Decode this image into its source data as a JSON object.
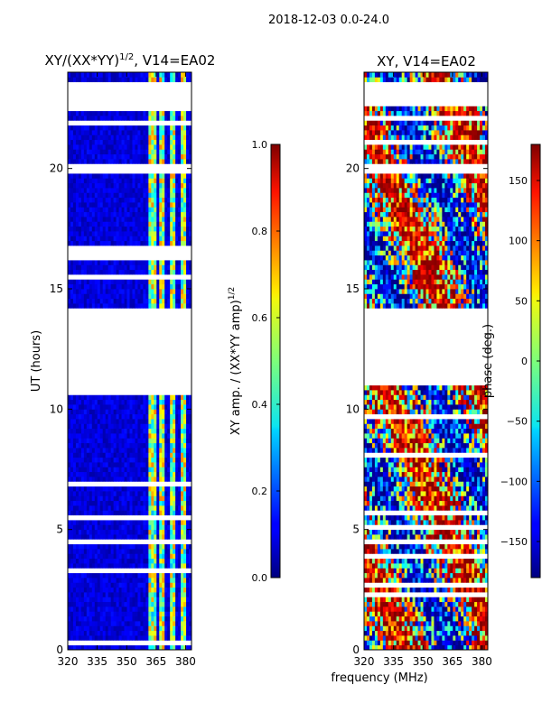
{
  "figure_title": "2018-12-03 0.0-24.0",
  "chart_data": [
    {
      "type": "heatmap",
      "title": "XY/(XX*YY)",
      "title_exp": "1/2",
      "title_suffix": ", V14=EA02",
      "xlabel": "",
      "ylabel": "UT (hours)",
      "xlim": [
        320,
        383
      ],
      "ylim": [
        0,
        24
      ],
      "xticks": [
        320,
        335,
        350,
        365,
        380
      ],
      "yticks": [
        0,
        5,
        10,
        15,
        20
      ],
      "colormap": "jet",
      "colorbar": {
        "label_main": "XY amp. / (XX*YY amp)",
        "label_exp": "1/2",
        "range": [
          0.0,
          1.0
        ],
        "ticks": [
          "0.0",
          "0.2",
          "0.4",
          "0.6",
          "0.8",
          "1.0"
        ],
        "tick_values": [
          0.0,
          0.2,
          0.4,
          0.6,
          0.8,
          1.0
        ]
      },
      "flagged_hour_ranges": [
        [
          10.95,
          14.2
        ],
        [
          22.7,
          23.6
        ],
        [
          16.3,
          16.75
        ],
        [
          19.9,
          20.25
        ],
        [
          4.4,
          4.65
        ]
      ],
      "bright_channel_bands_mhz": [
        [
          361,
          365
        ],
        [
          367,
          369
        ],
        [
          372,
          374.5
        ],
        [
          377,
          380
        ]
      ]
    },
    {
      "type": "heatmap",
      "title": "XY, V14=EA02",
      "xlabel": "frequency (MHz)",
      "ylabel": "",
      "xlim": [
        320,
        383
      ],
      "ylim": [
        0,
        24
      ],
      "xticks": [
        320,
        335,
        350,
        365,
        380
      ],
      "yticks": [
        0,
        5,
        10,
        15,
        20
      ],
      "colormap": "jet",
      "colorbar": {
        "label_main": "phase (deg.)",
        "range": [
          -180,
          180
        ],
        "ticks": [
          "−150",
          "−100",
          "−50",
          "0",
          "50",
          "100",
          "150"
        ],
        "tick_values": [
          -150,
          -100,
          -50,
          0,
          50,
          100,
          150
        ]
      },
      "flagged_hour_ranges": [
        [
          10.95,
          14.2
        ],
        [
          22.7,
          23.6
        ],
        [
          19.9,
          20.25
        ],
        [
          4.4,
          4.65
        ]
      ]
    }
  ],
  "icons": {
    "colormap_gradient": "jet-gradient-icon"
  }
}
